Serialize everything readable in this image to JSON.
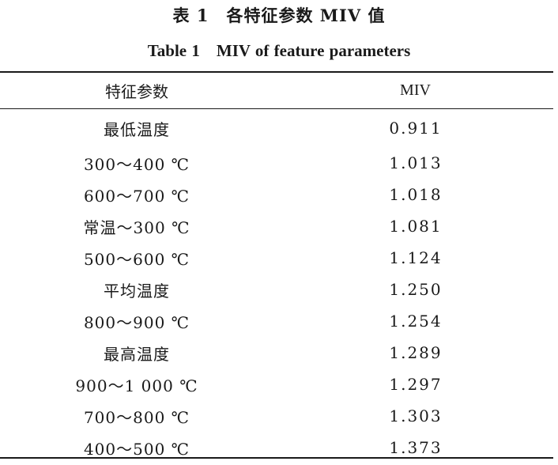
{
  "caption": {
    "cn": "表 1　各特征参数 MIV 值",
    "en": "Table 1　MIV of feature parameters"
  },
  "table": {
    "headers": [
      "特征参数",
      "MIV"
    ],
    "rows": [
      {
        "param": "最低温度",
        "miv": "0.911"
      },
      {
        "param": "300～400 ℃",
        "miv": "1.013"
      },
      {
        "param": "600～700 ℃",
        "miv": "1.018"
      },
      {
        "param": "常温～300 ℃",
        "miv": "1.081"
      },
      {
        "param": "500～600 ℃",
        "miv": "1.124"
      },
      {
        "param": "平均温度",
        "miv": "1.250"
      },
      {
        "param": "800～900 ℃",
        "miv": "1.254"
      },
      {
        "param": "最高温度",
        "miv": "1.289"
      },
      {
        "param": "900～1 000 ℃",
        "miv": "1.297"
      },
      {
        "param": "700～800 ℃",
        "miv": "1.303"
      },
      {
        "param": "400～500 ℃",
        "miv": "1.373"
      }
    ]
  }
}
